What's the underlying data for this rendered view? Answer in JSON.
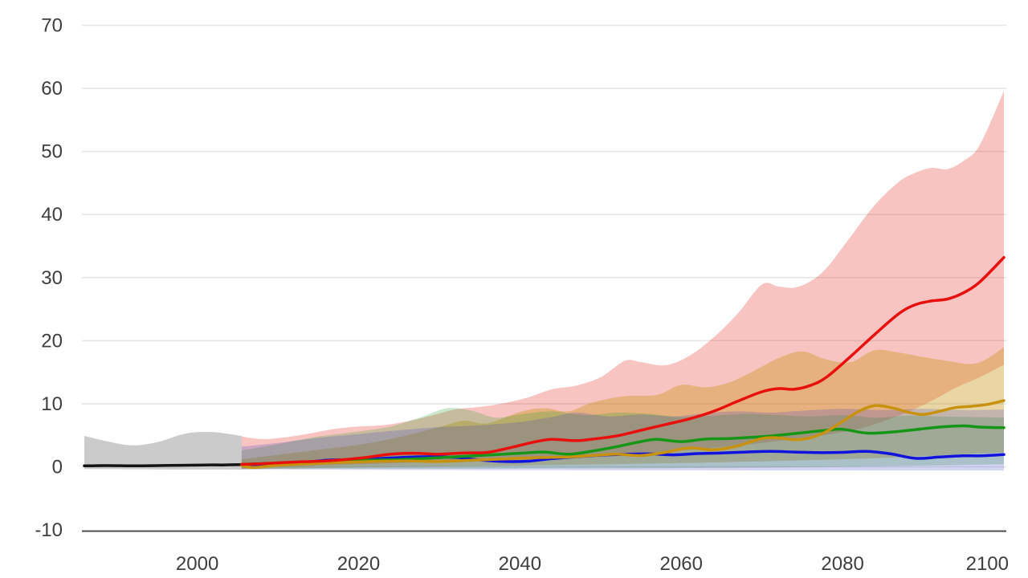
{
  "page": {
    "background": "#ffffff"
  },
  "chart_data": {
    "type": "line",
    "title": "",
    "legend": "none",
    "grid": true,
    "x_axis": {
      "range": [
        1986,
        2100.3
      ],
      "ticks": [
        2000,
        2020,
        2040,
        2060,
        2080,
        2100
      ],
      "label": ""
    },
    "y_axis": {
      "range": [
        -10,
        70
      ],
      "ticks": [
        -10,
        0,
        10,
        20,
        30,
        40,
        50,
        60,
        70
      ],
      "label": ""
    },
    "styles": {
      "grid_color": "#e4e4e4",
      "axis_line_color": "#4d4d4d",
      "tick_label_color": "#3e3e3e",
      "tick_font_px": 24
    },
    "series": [
      {
        "id": "historical",
        "line_color": "#141414",
        "band_color": "#cbcbcb",
        "band_opacity": 1,
        "points": [
          [
            1986,
            0.15
          ],
          [
            1989,
            0.2
          ],
          [
            1992,
            0.15
          ],
          [
            1995,
            0.2
          ],
          [
            1998,
            0.25
          ],
          [
            2001,
            0.3
          ],
          [
            2003,
            0.3
          ],
          [
            2005.5,
            0.35
          ]
        ],
        "band_hi": [
          [
            1986,
            4.9
          ],
          [
            1989,
            4.0
          ],
          [
            1992,
            3.4
          ],
          [
            1995,
            3.9
          ],
          [
            1998,
            5.1
          ],
          [
            2000,
            5.5
          ],
          [
            2002,
            5.5
          ],
          [
            2004,
            5.2
          ],
          [
            2005.5,
            4.9
          ]
        ],
        "band_lo": [
          [
            1986,
            -0.35
          ],
          [
            1995,
            -0.4
          ],
          [
            2005.5,
            -0.45
          ]
        ]
      },
      {
        "id": "red-scenario",
        "line_color": "#e8100c",
        "band_color": "#e3120b",
        "band_opacity": 0.25,
        "points": [
          [
            2005.5,
            0.4
          ],
          [
            2008,
            0.5
          ],
          [
            2012,
            0.75
          ],
          [
            2016,
            0.95
          ],
          [
            2020,
            1.35
          ],
          [
            2024,
            2.0
          ],
          [
            2027,
            2.15
          ],
          [
            2030,
            2.0
          ],
          [
            2033,
            2.2
          ],
          [
            2036,
            2.3
          ],
          [
            2039,
            3.1
          ],
          [
            2042,
            4.0
          ],
          [
            2044,
            4.35
          ],
          [
            2047,
            4.15
          ],
          [
            2049,
            4.4
          ],
          [
            2052,
            4.9
          ],
          [
            2055,
            5.8
          ],
          [
            2058,
            6.7
          ],
          [
            2061,
            7.6
          ],
          [
            2064,
            8.8
          ],
          [
            2067,
            10.4
          ],
          [
            2070,
            11.9
          ],
          [
            2072,
            12.4
          ],
          [
            2074,
            12.3
          ],
          [
            2076,
            12.9
          ],
          [
            2078,
            14.2
          ],
          [
            2081,
            17.5
          ],
          [
            2084,
            21.0
          ],
          [
            2087,
            24.3
          ],
          [
            2089,
            25.7
          ],
          [
            2091,
            26.3
          ],
          [
            2093,
            26.6
          ],
          [
            2095,
            27.6
          ],
          [
            2097,
            29.3
          ],
          [
            2100,
            33.2
          ]
        ],
        "band_hi": [
          [
            2005.5,
            4.8
          ],
          [
            2008,
            4.4
          ],
          [
            2011,
            4.7
          ],
          [
            2014,
            5.3
          ],
          [
            2017,
            6.0
          ],
          [
            2020,
            6.4
          ],
          [
            2023,
            6.6
          ],
          [
            2026,
            7.2
          ],
          [
            2029,
            8.1
          ],
          [
            2032,
            9.1
          ],
          [
            2035,
            9.5
          ],
          [
            2038,
            10.1
          ],
          [
            2041,
            11.0
          ],
          [
            2044,
            12.3
          ],
          [
            2047,
            12.9
          ],
          [
            2050,
            14.2
          ],
          [
            2053,
            16.8
          ],
          [
            2055,
            16.6
          ],
          [
            2058,
            16.1
          ],
          [
            2061,
            17.6
          ],
          [
            2064,
            20.5
          ],
          [
            2067,
            24.3
          ],
          [
            2070,
            28.9
          ],
          [
            2072,
            28.6
          ],
          [
            2074,
            28.4
          ],
          [
            2076,
            29.4
          ],
          [
            2078,
            31.5
          ],
          [
            2081,
            36.5
          ],
          [
            2084,
            41.5
          ],
          [
            2087,
            45.2
          ],
          [
            2089,
            46.6
          ],
          [
            2091,
            47.4
          ],
          [
            2093,
            47.2
          ],
          [
            2095,
            48.5
          ],
          [
            2097,
            51.0
          ],
          [
            2100,
            59.6
          ]
        ],
        "band_lo": [
          [
            2005.5,
            -0.3
          ],
          [
            2010,
            0.0
          ],
          [
            2020,
            0.4
          ],
          [
            2030,
            0.8
          ],
          [
            2040,
            1.2
          ],
          [
            2050,
            1.8
          ],
          [
            2060,
            2.6
          ],
          [
            2070,
            3.8
          ],
          [
            2080,
            5.5
          ],
          [
            2085,
            7.2
          ],
          [
            2090,
            9.8
          ],
          [
            2094,
            12.5
          ],
          [
            2097,
            14.2
          ],
          [
            2100,
            16.2
          ]
        ]
      },
      {
        "id": "orange-scenario",
        "line_color": "#c8920f",
        "band_color": "#c8920f",
        "band_opacity": 0.38,
        "points": [
          [
            2005.5,
            0.2
          ],
          [
            2007,
            -0.1
          ],
          [
            2010,
            0.25
          ],
          [
            2014,
            0.5
          ],
          [
            2018,
            0.7
          ],
          [
            2022,
            0.85
          ],
          [
            2026,
            0.95
          ],
          [
            2030,
            0.85
          ],
          [
            2034,
            1.05
          ],
          [
            2038,
            1.25
          ],
          [
            2042,
            1.45
          ],
          [
            2046,
            1.55
          ],
          [
            2049,
            1.8
          ],
          [
            2052,
            2.0
          ],
          [
            2055,
            1.8
          ],
          [
            2058,
            2.3
          ],
          [
            2061,
            3.0
          ],
          [
            2064,
            2.7
          ],
          [
            2067,
            3.3
          ],
          [
            2070,
            4.5
          ],
          [
            2072,
            4.6
          ],
          [
            2074,
            4.3
          ],
          [
            2076,
            4.6
          ],
          [
            2078,
            5.6
          ],
          [
            2080,
            7.2
          ],
          [
            2082,
            8.8
          ],
          [
            2084,
            9.7
          ],
          [
            2086,
            9.4
          ],
          [
            2088,
            8.7
          ],
          [
            2090,
            8.3
          ],
          [
            2092,
            8.8
          ],
          [
            2094,
            9.4
          ],
          [
            2096,
            9.6
          ],
          [
            2098,
            9.9
          ],
          [
            2100,
            10.5
          ]
        ],
        "band_hi": [
          [
            2005.5,
            1.2
          ],
          [
            2010,
            1.9
          ],
          [
            2015,
            2.7
          ],
          [
            2020,
            3.5
          ],
          [
            2025,
            4.7
          ],
          [
            2030,
            6.3
          ],
          [
            2033,
            7.3
          ],
          [
            2036,
            6.9
          ],
          [
            2040,
            8.7
          ],
          [
            2043,
            9.3
          ],
          [
            2046,
            8.8
          ],
          [
            2049,
            10.2
          ],
          [
            2053,
            11.2
          ],
          [
            2057,
            11.4
          ],
          [
            2060,
            13.0
          ],
          [
            2063,
            12.6
          ],
          [
            2066,
            13.4
          ],
          [
            2069,
            15.2
          ],
          [
            2072,
            17.2
          ],
          [
            2075,
            18.3
          ],
          [
            2078,
            17.0
          ],
          [
            2081,
            16.6
          ],
          [
            2084,
            18.5
          ],
          [
            2087,
            18.1
          ],
          [
            2090,
            17.4
          ],
          [
            2093,
            16.8
          ],
          [
            2096,
            16.3
          ],
          [
            2098,
            17.2
          ],
          [
            2100,
            19.0
          ]
        ],
        "band_lo": [
          [
            2005.5,
            -0.4
          ],
          [
            2020,
            -0.1
          ],
          [
            2040,
            0.2
          ],
          [
            2060,
            0.6
          ],
          [
            2080,
            1.2
          ],
          [
            2090,
            1.7
          ],
          [
            2100,
            2.3
          ]
        ]
      },
      {
        "id": "green-scenario",
        "line_color": "#169616",
        "band_color": "#2f9e2f",
        "band_opacity": 0.25,
        "points": [
          [
            2005.5,
            0.4
          ],
          [
            2010,
            0.6
          ],
          [
            2015,
            0.85
          ],
          [
            2020,
            1.05
          ],
          [
            2025,
            1.15
          ],
          [
            2030,
            1.45
          ],
          [
            2035,
            1.8
          ],
          [
            2040,
            2.15
          ],
          [
            2043,
            2.35
          ],
          [
            2046,
            2.0
          ],
          [
            2049,
            2.5
          ],
          [
            2052,
            3.2
          ],
          [
            2055,
            4.0
          ],
          [
            2057,
            4.35
          ],
          [
            2060,
            4.0
          ],
          [
            2063,
            4.4
          ],
          [
            2066,
            4.5
          ],
          [
            2069,
            4.7
          ],
          [
            2072,
            5.0
          ],
          [
            2075,
            5.4
          ],
          [
            2078,
            5.8
          ],
          [
            2080,
            5.95
          ],
          [
            2083,
            5.35
          ],
          [
            2086,
            5.5
          ],
          [
            2089,
            5.9
          ],
          [
            2092,
            6.3
          ],
          [
            2095,
            6.5
          ],
          [
            2097,
            6.3
          ],
          [
            2100,
            6.2
          ]
        ],
        "band_hi": [
          [
            2005.5,
            2.6
          ],
          [
            2010,
            3.6
          ],
          [
            2015,
            4.8
          ],
          [
            2020,
            5.6
          ],
          [
            2024,
            6.4
          ],
          [
            2028,
            8.0
          ],
          [
            2031,
            9.3
          ],
          [
            2034,
            8.9
          ],
          [
            2037,
            7.8
          ],
          [
            2040,
            8.3
          ],
          [
            2044,
            8.8
          ],
          [
            2048,
            8.2
          ],
          [
            2052,
            8.6
          ],
          [
            2056,
            8.4
          ],
          [
            2060,
            7.9
          ],
          [
            2064,
            8.1
          ],
          [
            2068,
            8.4
          ],
          [
            2072,
            8.2
          ],
          [
            2076,
            8.0
          ],
          [
            2080,
            8.2
          ],
          [
            2084,
            7.8
          ],
          [
            2088,
            8.1
          ],
          [
            2092,
            8.0
          ],
          [
            2096,
            7.9
          ],
          [
            2100,
            7.8
          ]
        ],
        "band_lo": [
          [
            2005.5,
            -0.3
          ],
          [
            2030,
            -0.3
          ],
          [
            2060,
            -0.2
          ],
          [
            2080,
            0.0
          ],
          [
            2100,
            0.4
          ]
        ]
      },
      {
        "id": "blue-scenario",
        "line_color": "#1212dd",
        "band_color": "#3c3cc8",
        "band_opacity": 0.22,
        "points": [
          [
            2005.5,
            0.35
          ],
          [
            2008,
            0.2
          ],
          [
            2012,
            0.45
          ],
          [
            2016,
            1.05
          ],
          [
            2020,
            1.15
          ],
          [
            2024,
            1.4
          ],
          [
            2028,
            1.6
          ],
          [
            2032,
            1.5
          ],
          [
            2035,
            1.1
          ],
          [
            2038,
            0.85
          ],
          [
            2041,
            0.9
          ],
          [
            2044,
            1.3
          ],
          [
            2048,
            1.7
          ],
          [
            2052,
            1.95
          ],
          [
            2056,
            2.05
          ],
          [
            2059,
            1.9
          ],
          [
            2062,
            2.1
          ],
          [
            2065,
            2.2
          ],
          [
            2068,
            2.35
          ],
          [
            2071,
            2.45
          ],
          [
            2074,
            2.35
          ],
          [
            2077,
            2.25
          ],
          [
            2080,
            2.3
          ],
          [
            2083,
            2.45
          ],
          [
            2086,
            2.05
          ],
          [
            2089,
            1.35
          ],
          [
            2092,
            1.55
          ],
          [
            2095,
            1.75
          ],
          [
            2097,
            1.75
          ],
          [
            2100,
            1.95
          ]
        ],
        "band_hi": [
          [
            2005.5,
            3.2
          ],
          [
            2010,
            3.8
          ],
          [
            2015,
            4.6
          ],
          [
            2020,
            5.2
          ],
          [
            2025,
            5.8
          ],
          [
            2030,
            6.3
          ],
          [
            2035,
            6.6
          ],
          [
            2040,
            7.1
          ],
          [
            2044,
            7.9
          ],
          [
            2047,
            8.6
          ],
          [
            2051,
            8.0
          ],
          [
            2055,
            8.3
          ],
          [
            2059,
            8.0
          ],
          [
            2063,
            8.5
          ],
          [
            2067,
            8.8
          ],
          [
            2071,
            8.6
          ],
          [
            2075,
            8.9
          ],
          [
            2080,
            9.2
          ],
          [
            2085,
            9.0
          ],
          [
            2090,
            9.2
          ],
          [
            2095,
            9.0
          ],
          [
            2100,
            9.1
          ]
        ],
        "band_lo": [
          [
            2005.5,
            -0.4
          ],
          [
            2030,
            -0.5
          ],
          [
            2060,
            -0.55
          ],
          [
            2100,
            -0.6
          ]
        ]
      }
    ],
    "band_draw_order": [
      "historical",
      "red-scenario",
      "orange-scenario",
      "green-scenario",
      "blue-scenario"
    ],
    "line_draw_order": [
      "historical",
      "blue-scenario",
      "green-scenario",
      "orange-scenario",
      "red-scenario"
    ]
  }
}
